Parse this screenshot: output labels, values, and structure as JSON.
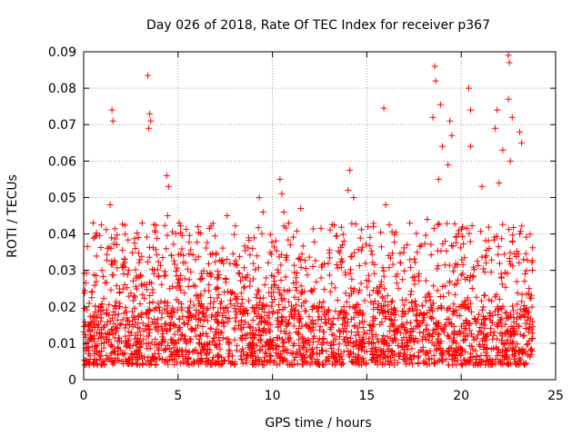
{
  "chart_data": {
    "type": "scatter",
    "title": "Day 026 of 2018, Rate Of TEC Index for receiver p367",
    "xlabel": "GPS time / hours",
    "ylabel": "ROTI / TECUs",
    "xlim": [
      0,
      25
    ],
    "ylim": [
      0,
      0.09
    ],
    "xticks": [
      0,
      5,
      10,
      15,
      20,
      25
    ],
    "xtick_labels": [
      "0",
      "5",
      "10",
      "15",
      "20",
      "25"
    ],
    "yticks": [
      0,
      0.01,
      0.02,
      0.03,
      0.04,
      0.05,
      0.06,
      0.07,
      0.08,
      0.09
    ],
    "ytick_labels": [
      "0",
      "0.01",
      "0.02",
      "0.03",
      "0.04",
      "0.05",
      "0.06",
      "0.07",
      "0.08",
      "0.09"
    ],
    "grid": true,
    "marker": "+",
    "color": "#ff0000",
    "data_range_hours": [
      0,
      23.8
    ],
    "dense_band": [
      0.004,
      0.02
    ],
    "notable_points": [
      {
        "x": 0.5,
        "y": 0.043
      },
      {
        "x": 1.4,
        "y": 0.048
      },
      {
        "x": 1.5,
        "y": 0.074
      },
      {
        "x": 1.55,
        "y": 0.071
      },
      {
        "x": 3.1,
        "y": 0.043
      },
      {
        "x": 3.4,
        "y": 0.0835
      },
      {
        "x": 3.5,
        "y": 0.073
      },
      {
        "x": 3.55,
        "y": 0.071
      },
      {
        "x": 3.45,
        "y": 0.069
      },
      {
        "x": 4.4,
        "y": 0.056
      },
      {
        "x": 4.5,
        "y": 0.053
      },
      {
        "x": 4.45,
        "y": 0.045
      },
      {
        "x": 7.6,
        "y": 0.045
      },
      {
        "x": 9.3,
        "y": 0.05
      },
      {
        "x": 9.5,
        "y": 0.046
      },
      {
        "x": 10.4,
        "y": 0.055
      },
      {
        "x": 10.5,
        "y": 0.051
      },
      {
        "x": 10.6,
        "y": 0.046
      },
      {
        "x": 11.5,
        "y": 0.047
      },
      {
        "x": 14.1,
        "y": 0.0575
      },
      {
        "x": 14.0,
        "y": 0.052
      },
      {
        "x": 14.3,
        "y": 0.05
      },
      {
        "x": 15.9,
        "y": 0.0745
      },
      {
        "x": 16.0,
        "y": 0.048
      },
      {
        "x": 18.2,
        "y": 0.044
      },
      {
        "x": 18.6,
        "y": 0.086
      },
      {
        "x": 18.65,
        "y": 0.082
      },
      {
        "x": 18.9,
        "y": 0.0755
      },
      {
        "x": 18.5,
        "y": 0.072
      },
      {
        "x": 19.4,
        "y": 0.071
      },
      {
        "x": 19.5,
        "y": 0.067
      },
      {
        "x": 19.0,
        "y": 0.064
      },
      {
        "x": 19.3,
        "y": 0.059
      },
      {
        "x": 18.8,
        "y": 0.055
      },
      {
        "x": 20.4,
        "y": 0.08
      },
      {
        "x": 20.5,
        "y": 0.074
      },
      {
        "x": 20.5,
        "y": 0.064
      },
      {
        "x": 21.1,
        "y": 0.053
      },
      {
        "x": 21.9,
        "y": 0.074
      },
      {
        "x": 21.8,
        "y": 0.069
      },
      {
        "x": 22.2,
        "y": 0.063
      },
      {
        "x": 22.5,
        "y": 0.089
      },
      {
        "x": 22.55,
        "y": 0.087
      },
      {
        "x": 22.5,
        "y": 0.077
      },
      {
        "x": 22.7,
        "y": 0.072
      },
      {
        "x": 22.6,
        "y": 0.06
      },
      {
        "x": 23.1,
        "y": 0.068
      },
      {
        "x": 23.2,
        "y": 0.065
      },
      {
        "x": 22.0,
        "y": 0.054
      },
      {
        "x": 23.1,
        "y": 0.04
      }
    ]
  }
}
